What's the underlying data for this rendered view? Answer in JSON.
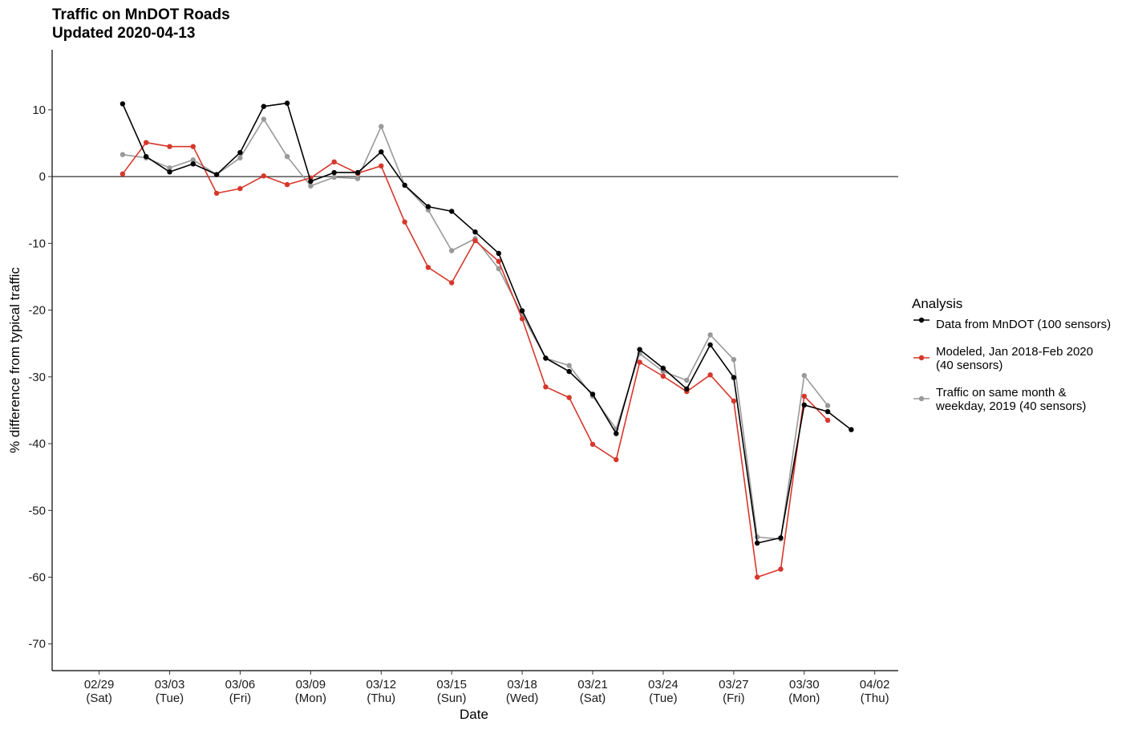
{
  "title": {
    "line1": "Traffic on MnDOT Roads",
    "line2": "Updated 2020-04-13"
  },
  "chart_data": {
    "type": "line",
    "title": "Traffic on MnDOT Roads",
    "subtitle": "Updated 2020-04-13",
    "xlabel": "Date",
    "ylabel": "% difference from typical traffic",
    "x_range": [
      "2020-02-27",
      "2020-04-03"
    ],
    "ylim": [
      -74,
      19
    ],
    "yticks": [
      10,
      0,
      -10,
      -20,
      -30,
      -40,
      -50,
      -60,
      -70
    ],
    "x_ticks": [
      {
        "date": "2020-02-29",
        "line1": "02/29",
        "line2": "(Sat)"
      },
      {
        "date": "2020-03-03",
        "line1": "03/03",
        "line2": "(Tue)"
      },
      {
        "date": "2020-03-06",
        "line1": "03/06",
        "line2": "(Fri)"
      },
      {
        "date": "2020-03-09",
        "line1": "03/09",
        "line2": "(Mon)"
      },
      {
        "date": "2020-03-12",
        "line1": "03/12",
        "line2": "(Thu)"
      },
      {
        "date": "2020-03-15",
        "line1": "03/15",
        "line2": "(Sun)"
      },
      {
        "date": "2020-03-18",
        "line1": "03/18",
        "line2": "(Wed)"
      },
      {
        "date": "2020-03-21",
        "line1": "03/21",
        "line2": "(Sat)"
      },
      {
        "date": "2020-03-24",
        "line1": "03/24",
        "line2": "(Tue)"
      },
      {
        "date": "2020-03-27",
        "line1": "03/27",
        "line2": "(Fri)"
      },
      {
        "date": "2020-03-30",
        "line1": "03/30",
        "line2": "(Mon)"
      },
      {
        "date": "2020-04-02",
        "line1": "04/02",
        "line2": "(Thu)"
      }
    ],
    "reference_line": 0,
    "grid": false,
    "legend": {
      "title": "Analysis",
      "position": "right",
      "entries": [
        {
          "lines": [
            "Data from MnDOT (100 sensors)"
          ],
          "color": "#000000"
        },
        {
          "lines": [
            "Modeled, Jan 2018-Feb 2020",
            "(40 sensors)"
          ],
          "color": "#d7372b"
        },
        {
          "lines": [
            "Traffic on same month &",
            "weekday, 2019 (40 sensors)"
          ],
          "color": "#999999"
        }
      ]
    },
    "series": [
      {
        "name": "Traffic on same month & weekday, 2019 (40 sensors)",
        "color": "#999999",
        "points": [
          [
            "2020-03-01",
            3.3
          ],
          [
            "2020-03-02",
            2.8
          ],
          [
            "2020-03-03",
            1.3
          ],
          [
            "2020-03-04",
            2.5
          ],
          [
            "2020-03-05",
            0.3
          ],
          [
            "2020-03-06",
            2.8
          ],
          [
            "2020-03-07",
            8.6
          ],
          [
            "2020-03-08",
            3.0
          ],
          [
            "2020-03-09",
            -1.4
          ],
          [
            "2020-03-10",
            -0.1
          ],
          [
            "2020-03-11",
            -0.3
          ],
          [
            "2020-03-12",
            7.5
          ],
          [
            "2020-03-13",
            -1.3
          ],
          [
            "2020-03-14",
            -5.0
          ],
          [
            "2020-03-15",
            -11.1
          ],
          [
            "2020-03-16",
            -9.3
          ],
          [
            "2020-03-17",
            -13.8
          ],
          [
            "2020-03-18",
            -20.7
          ],
          [
            "2020-03-19",
            -27.2
          ],
          [
            "2020-03-20",
            -28.3
          ],
          [
            "2020-03-21",
            -32.9
          ],
          [
            "2020-03-22",
            -37.8
          ],
          [
            "2020-03-23",
            -26.5
          ],
          [
            "2020-03-24",
            -29.2
          ],
          [
            "2020-03-25",
            -30.5
          ],
          [
            "2020-03-26",
            -23.7
          ],
          [
            "2020-03-27",
            -27.4
          ],
          [
            "2020-03-28",
            -54.0
          ],
          [
            "2020-03-29",
            -54.3
          ],
          [
            "2020-03-30",
            -29.8
          ],
          [
            "2020-03-31",
            -34.3
          ]
        ]
      },
      {
        "name": "Modeled, Jan 2018-Feb 2020 (40 sensors)",
        "color": "#d7372b",
        "points": [
          [
            "2020-03-01",
            0.4
          ],
          [
            "2020-03-02",
            5.1
          ],
          [
            "2020-03-03",
            4.5
          ],
          [
            "2020-03-04",
            4.5
          ],
          [
            "2020-03-05",
            -2.5
          ],
          [
            "2020-03-06",
            -1.8
          ],
          [
            "2020-03-07",
            0.1
          ],
          [
            "2020-03-08",
            -1.2
          ],
          [
            "2020-03-09",
            -0.2
          ],
          [
            "2020-03-10",
            2.2
          ],
          [
            "2020-03-11",
            0.5
          ],
          [
            "2020-03-12",
            1.6
          ],
          [
            "2020-03-13",
            -6.8
          ],
          [
            "2020-03-14",
            -13.6
          ],
          [
            "2020-03-15",
            -15.9
          ],
          [
            "2020-03-16",
            -9.6
          ],
          [
            "2020-03-17",
            -12.7
          ],
          [
            "2020-03-18",
            -21.3
          ],
          [
            "2020-03-19",
            -31.5
          ],
          [
            "2020-03-20",
            -33.1
          ],
          [
            "2020-03-21",
            -40.1
          ],
          [
            "2020-03-22",
            -42.4
          ],
          [
            "2020-03-23",
            -27.8
          ],
          [
            "2020-03-24",
            -29.9
          ],
          [
            "2020-03-25",
            -32.2
          ],
          [
            "2020-03-26",
            -29.7
          ],
          [
            "2020-03-27",
            -33.6
          ],
          [
            "2020-03-28",
            -60.0
          ],
          [
            "2020-03-29",
            -58.8
          ],
          [
            "2020-03-30",
            -32.9
          ],
          [
            "2020-03-31",
            -36.5
          ]
        ]
      },
      {
        "name": "Data from MnDOT (100 sensors)",
        "color": "#000000",
        "points": [
          [
            "2020-03-01",
            10.9
          ],
          [
            "2020-03-02",
            3.0
          ],
          [
            "2020-03-03",
            0.7
          ],
          [
            "2020-03-04",
            1.9
          ],
          [
            "2020-03-05",
            0.3
          ],
          [
            "2020-03-06",
            3.6
          ],
          [
            "2020-03-07",
            10.5
          ],
          [
            "2020-03-08",
            11.0
          ],
          [
            "2020-03-09",
            -0.7
          ],
          [
            "2020-03-10",
            0.6
          ],
          [
            "2020-03-11",
            0.6
          ],
          [
            "2020-03-12",
            3.7
          ],
          [
            "2020-03-13",
            -1.3
          ],
          [
            "2020-03-14",
            -4.5
          ],
          [
            "2020-03-15",
            -5.2
          ],
          [
            "2020-03-16",
            -8.3
          ],
          [
            "2020-03-17",
            -11.5
          ],
          [
            "2020-03-18",
            -20.1
          ],
          [
            "2020-03-19",
            -27.2
          ],
          [
            "2020-03-20",
            -29.2
          ],
          [
            "2020-03-21",
            -32.6
          ],
          [
            "2020-03-22",
            -38.5
          ],
          [
            "2020-03-23",
            -25.9
          ],
          [
            "2020-03-24",
            -28.7
          ],
          [
            "2020-03-25",
            -31.8
          ],
          [
            "2020-03-26",
            -25.2
          ],
          [
            "2020-03-27",
            -30.1
          ],
          [
            "2020-03-28",
            -54.9
          ],
          [
            "2020-03-29",
            -54.1
          ],
          [
            "2020-03-30",
            -34.2
          ],
          [
            "2020-03-31",
            -35.2
          ],
          [
            "2020-04-01",
            -37.9
          ]
        ]
      }
    ]
  }
}
